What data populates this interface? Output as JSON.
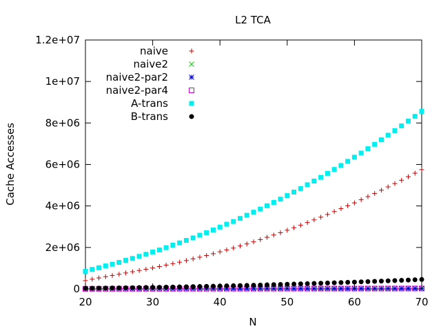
{
  "chart_data": {
    "type": "scatter",
    "title": "L2 TCA",
    "xlabel": "N",
    "ylabel": "Cache Accesses",
    "xlim": [
      20,
      70
    ],
    "ylim": [
      0,
      12000000
    ],
    "xticks": [
      20,
      30,
      40,
      50,
      60,
      70
    ],
    "xtick_labels": [
      "20",
      "30",
      "40",
      "50",
      "60",
      "70"
    ],
    "yticks": [
      0,
      2000000,
      4000000,
      6000000,
      8000000,
      10000000,
      12000000
    ],
    "ytick_labels": [
      "0",
      "2e+06",
      "4e+06",
      "6e+06",
      "8e+06",
      "1e+07",
      "1.2e+07"
    ],
    "grid": false,
    "legend_position": "top-left",
    "x": [
      20,
      21,
      22,
      23,
      24,
      25,
      26,
      27,
      28,
      29,
      30,
      31,
      32,
      33,
      34,
      35,
      36,
      37,
      38,
      39,
      40,
      41,
      42,
      43,
      44,
      45,
      46,
      47,
      48,
      49,
      50,
      51,
      52,
      53,
      54,
      55,
      56,
      57,
      58,
      59,
      60,
      61,
      62,
      63,
      64,
      65,
      66,
      67,
      68,
      69,
      70
    ],
    "series": [
      {
        "name": "naive",
        "marker": "plus",
        "color": "#c00000",
        "values": [
          400000,
          470000,
          530000,
          590000,
          650000,
          710000,
          770000,
          830000,
          890000,
          950000,
          1010000,
          1080000,
          1150000,
          1220000,
          1290000,
          1370000,
          1450000,
          1530000,
          1610000,
          1700000,
          1790000,
          1880000,
          1970000,
          2070000,
          2170000,
          2270000,
          2380000,
          2490000,
          2600000,
          2710000,
          2830000,
          2950000,
          3070000,
          3200000,
          3330000,
          3460000,
          3590000,
          3730000,
          3870000,
          4010000,
          4150000,
          4300000,
          4450000,
          4600000,
          4760000,
          4920000,
          5080000,
          5240000,
          5410000,
          5580000,
          5750000
        ]
      },
      {
        "name": "naive2",
        "marker": "cross",
        "color": "#00cc00",
        "values": [
          5000,
          5300,
          5600,
          5900,
          6200,
          6500,
          6800,
          7100,
          7400,
          7700,
          8000,
          8300,
          8600,
          8900,
          9200,
          9500,
          9800,
          10100,
          10400,
          10700,
          11000,
          11300,
          11600,
          11900,
          12200,
          12500,
          12800,
          13100,
          13400,
          13700,
          14000,
          14300,
          14600,
          14900,
          15200,
          15500,
          15800,
          16100,
          16400,
          16700,
          17000,
          17300,
          17600,
          17900,
          18200,
          18500,
          18800,
          19100,
          19400,
          19700,
          20000
        ]
      },
      {
        "name": "naive2-par2",
        "marker": "star",
        "color": "#0000cc",
        "values": [
          5500,
          5800,
          6100,
          6400,
          6700,
          7000,
          7300,
          7600,
          7900,
          8200,
          8500,
          8800,
          9100,
          9400,
          9700,
          10000,
          10300,
          10600,
          10900,
          11200,
          11500,
          11800,
          12100,
          12400,
          12700,
          13000,
          13300,
          13600,
          13900,
          14200,
          14500,
          14800,
          15100,
          15400,
          15700,
          16000,
          16300,
          16600,
          16900,
          17200,
          17500,
          17800,
          18100,
          18400,
          18700,
          19000,
          19300,
          19600,
          19900,
          20200,
          20500
        ]
      },
      {
        "name": "naive2-par4",
        "marker": "open-square",
        "color": "#cc00cc",
        "values": [
          6000,
          6300,
          6600,
          6900,
          7200,
          7500,
          7800,
          8100,
          8400,
          8700,
          9000,
          9300,
          9600,
          9900,
          10200,
          10500,
          10800,
          11100,
          11400,
          11700,
          12000,
          12300,
          12600,
          12900,
          13200,
          13500,
          13800,
          14100,
          14400,
          14700,
          15000,
          15300,
          15600,
          15900,
          16200,
          16500,
          16800,
          17100,
          17400,
          17700,
          18000,
          18300,
          18600,
          18900,
          19200,
          19500,
          19800,
          20100,
          20400,
          20700,
          21000
        ]
      },
      {
        "name": "A-trans",
        "marker": "filled-square",
        "color": "#00eeee",
        "values": [
          850000,
          940000,
          1020000,
          1110000,
          1190000,
          1280000,
          1380000,
          1470000,
          1570000,
          1670000,
          1780000,
          1880000,
          1990000,
          2110000,
          2220000,
          2340000,
          2460000,
          2590000,
          2710000,
          2840000,
          2980000,
          3120000,
          3250000,
          3400000,
          3550000,
          3700000,
          3850000,
          4010000,
          4170000,
          4330000,
          4500000,
          4670000,
          4840000,
          5020000,
          5200000,
          5380000,
          5570000,
          5760000,
          5950000,
          6150000,
          6350000,
          6550000,
          6760000,
          6970000,
          7190000,
          7410000,
          7630000,
          7860000,
          8090000,
          8320000,
          8560000
        ]
      },
      {
        "name": "B-trans",
        "marker": "filled-circle",
        "color": "#000000",
        "values": [
          30000,
          34000,
          38000,
          42000,
          46000,
          50000,
          55000,
          60000,
          65000,
          70000,
          75000,
          81000,
          87000,
          93000,
          99000,
          105000,
          112000,
          119000,
          126000,
          133000,
          140000,
          148000,
          156000,
          164000,
          172000,
          180000,
          189000,
          198000,
          207000,
          216000,
          225000,
          235000,
          245000,
          255000,
          265000,
          275000,
          286000,
          297000,
          308000,
          319000,
          330000,
          342000,
          354000,
          366000,
          378000,
          390000,
          403000,
          416000,
          429000,
          442000,
          455000
        ]
      }
    ]
  }
}
